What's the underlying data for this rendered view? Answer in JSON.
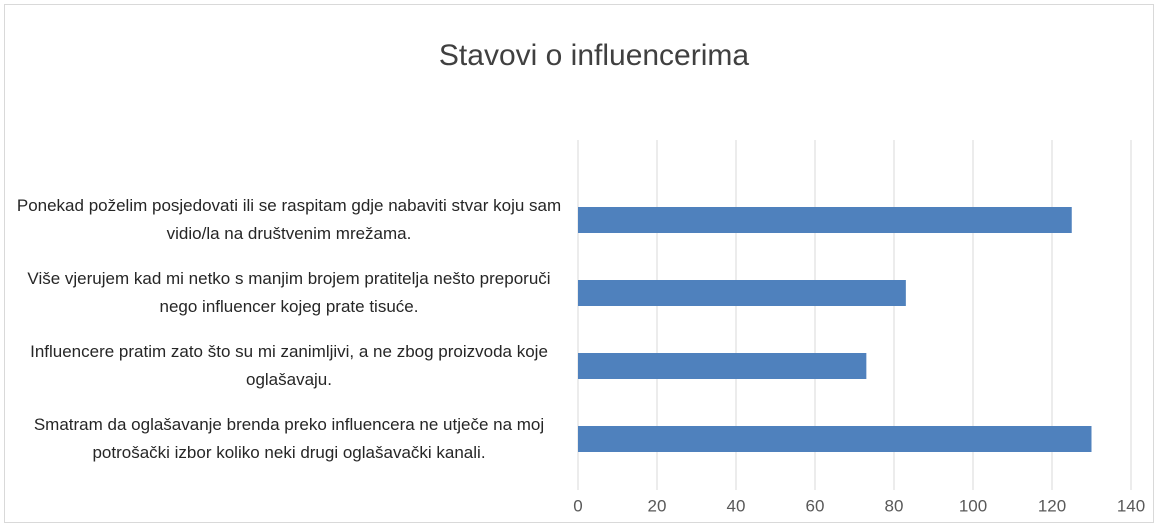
{
  "chart_data": {
    "type": "bar",
    "orientation": "horizontal",
    "title": "Stavovi o influencerima",
    "categories": [
      "Ponekad poželim posjedovati ili se raspitam gdje nabaviti stvar koju sam vidio/la na društvenim mrežama.",
      "Više vjerujem kad mi netko s manjim brojem pratitelja nešto preporuči nego influencer kojeg prate tisuće.",
      "Influencere pratim zato što su mi zanimljivi, a ne zbog proizvoda koje oglašavaju.",
      "Smatram da oglašavanje brenda preko influencera ne utječe na moj potrošački izbor koliko neki drugi oglašavački kanali."
    ],
    "values": [
      125,
      83,
      73,
      130
    ],
    "color": "#4f81bd",
    "xlim": [
      0,
      140
    ],
    "xticks": [
      0,
      20,
      40,
      60,
      80,
      100,
      120,
      140
    ],
    "grid": true
  }
}
